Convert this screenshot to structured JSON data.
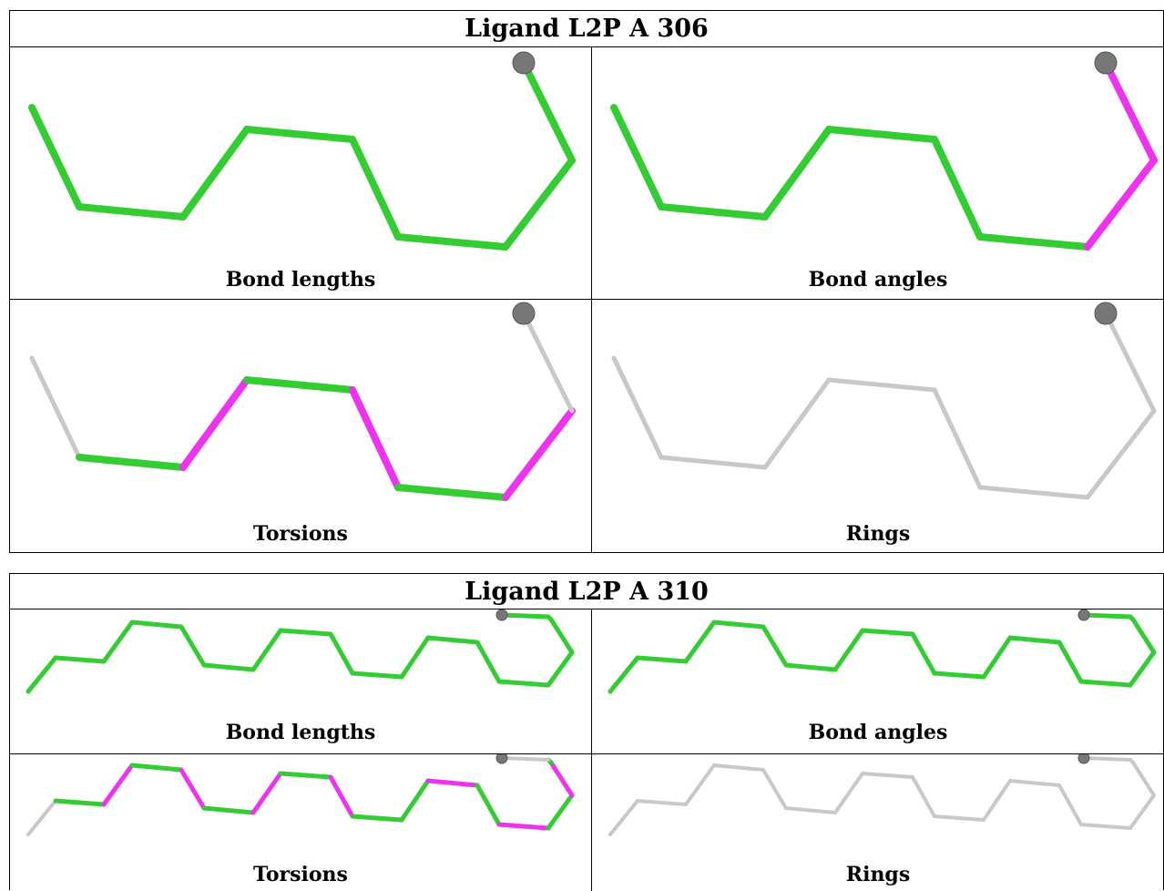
{
  "colors": {
    "pass": "#33cc33",
    "outlier": "#ee33ee",
    "neutral": "#c8c8c8",
    "atom": "#777777"
  },
  "ligands": [
    {
      "title": "Ligand L2P A 306",
      "panels": [
        {
          "caption": "Bond lengths",
          "colors": [
            "g",
            "g",
            "g",
            "g",
            "g",
            "g",
            "g",
            "g"
          ]
        },
        {
          "caption": "Bond angles",
          "colors": [
            "g",
            "g",
            "g",
            "g",
            "g",
            "g",
            "m",
            "m"
          ]
        },
        {
          "caption": "Torsions",
          "colors": [
            "n",
            "g",
            "m",
            "g",
            "m",
            "g",
            "m",
            "n"
          ]
        },
        {
          "caption": "Rings",
          "colors": [
            "n",
            "n",
            "n",
            "n",
            "n",
            "n",
            "n",
            "n"
          ]
        }
      ]
    },
    {
      "title": "Ligand L2P A 310",
      "panels": [
        {
          "caption": "Bond lengths",
          "colors": [
            "g",
            "g",
            "g",
            "g",
            "g",
            "g",
            "g",
            "g",
            "g",
            "g",
            "g",
            "g",
            "g",
            "g",
            "g",
            "g",
            "g",
            "g"
          ]
        },
        {
          "caption": "Bond angles",
          "colors": [
            "g",
            "g",
            "g",
            "g",
            "g",
            "g",
            "g",
            "g",
            "g",
            "g",
            "g",
            "g",
            "g",
            "g",
            "g",
            "g",
            "g",
            "g"
          ]
        },
        {
          "caption": "Torsions",
          "colors": [
            "n",
            "g",
            "m",
            "g",
            "m",
            "g",
            "m",
            "g",
            "m",
            "g",
            "g",
            "m",
            "g",
            "m",
            "g",
            "m",
            "g",
            "n"
          ]
        },
        {
          "caption": "Rings",
          "colors": [
            "n",
            "n",
            "n",
            "n",
            "n",
            "n",
            "n",
            "n",
            "n",
            "n",
            "n",
            "n",
            "n",
            "n",
            "n",
            "n",
            "n",
            "n"
          ]
        }
      ]
    }
  ]
}
